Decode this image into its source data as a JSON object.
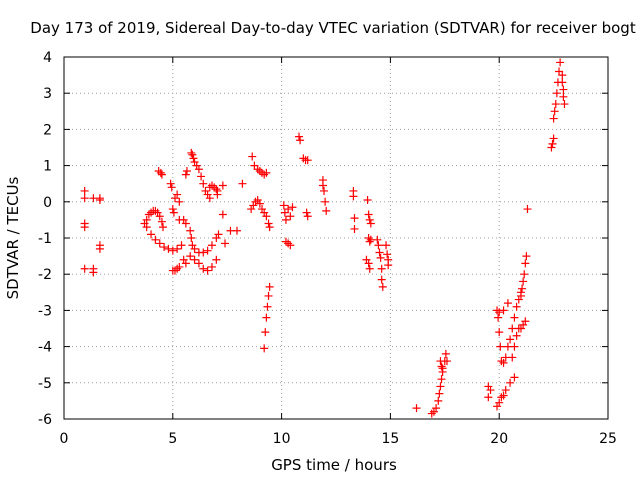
{
  "chart_data": {
    "type": "scatter",
    "title": "Day 173 of 2019, Sidereal Day-to-day VTEC variation (SDTVAR) for receiver bogt",
    "xlabel": "GPS time / hours",
    "ylabel": "SDTVAR / TECUs",
    "xlim": [
      0,
      25
    ],
    "ylim": [
      -6,
      4
    ],
    "xticks": [
      0,
      5,
      10,
      15,
      20,
      25
    ],
    "yticks": [
      -6,
      -5,
      -4,
      -3,
      -2,
      -1,
      0,
      1,
      2,
      3,
      4
    ],
    "grid": true,
    "marker": "+",
    "color": "#ff0000",
    "series": [
      {
        "name": "bogt",
        "points": [
          [
            0.95,
            0.3
          ],
          [
            0.95,
            0.1
          ],
          [
            0.95,
            -0.6
          ],
          [
            0.95,
            -0.7
          ],
          [
            0.95,
            -1.85
          ],
          [
            1.35,
            0.1
          ],
          [
            1.35,
            -1.85
          ],
          [
            1.35,
            -1.95
          ],
          [
            1.65,
            0.1
          ],
          [
            1.65,
            0.05
          ],
          [
            1.65,
            -1.2
          ],
          [
            1.65,
            -1.3
          ],
          [
            3.7,
            -0.6
          ],
          [
            3.8,
            -0.5
          ],
          [
            3.9,
            -0.35
          ],
          [
            4.0,
            -0.3
          ],
          [
            4.1,
            -0.25
          ],
          [
            4.2,
            -0.25
          ],
          [
            4.3,
            -0.3
          ],
          [
            4.4,
            -0.4
          ],
          [
            4.5,
            -0.55
          ],
          [
            4.55,
            -0.7
          ],
          [
            3.8,
            -0.7
          ],
          [
            4.0,
            -0.9
          ],
          [
            4.2,
            -1.05
          ],
          [
            4.4,
            -1.15
          ],
          [
            4.6,
            -1.25
          ],
          [
            4.8,
            -1.3
          ],
          [
            5.0,
            -1.35
          ],
          [
            5.2,
            -1.3
          ],
          [
            5.4,
            -1.2
          ],
          [
            4.35,
            0.85
          ],
          [
            4.45,
            0.8
          ],
          [
            4.5,
            0.75
          ],
          [
            4.9,
            0.5
          ],
          [
            4.95,
            0.4
          ],
          [
            5.0,
            -1.9
          ],
          [
            5.1,
            -1.9
          ],
          [
            5.2,
            -1.85
          ],
          [
            5.3,
            -1.8
          ],
          [
            5.0,
            -0.2
          ],
          [
            5.05,
            -0.3
          ],
          [
            5.1,
            0.1
          ],
          [
            5.2,
            0.2
          ],
          [
            5.3,
            0.0
          ],
          [
            5.3,
            -0.5
          ],
          [
            5.5,
            -0.5
          ],
          [
            5.6,
            -0.6
          ],
          [
            5.5,
            -1.6
          ],
          [
            5.6,
            -1.7
          ],
          [
            5.6,
            0.75
          ],
          [
            5.65,
            0.85
          ],
          [
            5.85,
            1.35
          ],
          [
            5.9,
            1.3
          ],
          [
            5.95,
            1.2
          ],
          [
            6.0,
            1.1
          ],
          [
            6.1,
            1.0
          ],
          [
            6.2,
            0.9
          ],
          [
            6.3,
            0.7
          ],
          [
            6.4,
            0.5
          ],
          [
            6.5,
            0.3
          ],
          [
            6.6,
            0.2
          ],
          [
            6.7,
            0.1
          ],
          [
            6.7,
            0.4
          ],
          [
            6.8,
            0.45
          ],
          [
            6.9,
            0.4
          ],
          [
            7.0,
            0.35
          ],
          [
            7.05,
            0.3
          ],
          [
            7.05,
            0.2
          ],
          [
            7.3,
            0.45
          ],
          [
            5.8,
            -0.8
          ],
          [
            5.85,
            -1.0
          ],
          [
            5.9,
            -1.2
          ],
          [
            6.0,
            -1.3
          ],
          [
            6.2,
            -1.4
          ],
          [
            6.4,
            -1.4
          ],
          [
            6.6,
            -1.35
          ],
          [
            6.8,
            -1.2
          ],
          [
            7.0,
            -1.0
          ],
          [
            7.1,
            -0.9
          ],
          [
            5.8,
            -1.5
          ],
          [
            6.0,
            -1.6
          ],
          [
            6.2,
            -1.7
          ],
          [
            6.4,
            -1.85
          ],
          [
            6.6,
            -1.9
          ],
          [
            6.8,
            -1.8
          ],
          [
            7.0,
            -1.6
          ],
          [
            7.3,
            -0.35
          ],
          [
            7.4,
            -1.15
          ],
          [
            7.65,
            -0.8
          ],
          [
            7.95,
            -0.8
          ],
          [
            8.2,
            0.5
          ],
          [
            8.65,
            1.25
          ],
          [
            8.75,
            1.0
          ],
          [
            8.9,
            0.9
          ],
          [
            9.0,
            0.85
          ],
          [
            9.1,
            0.8
          ],
          [
            9.2,
            0.75
          ],
          [
            9.3,
            0.8
          ],
          [
            8.6,
            -0.2
          ],
          [
            8.7,
            -0.1
          ],
          [
            8.8,
            0.0
          ],
          [
            8.9,
            0.05
          ],
          [
            9.0,
            -0.05
          ],
          [
            9.1,
            -0.2
          ],
          [
            9.2,
            -0.3
          ],
          [
            9.3,
            -0.4
          ],
          [
            9.4,
            -0.6
          ],
          [
            9.45,
            -0.7
          ],
          [
            9.2,
            -4.05
          ],
          [
            9.25,
            -3.6
          ],
          [
            9.3,
            -3.2
          ],
          [
            9.35,
            -2.9
          ],
          [
            9.4,
            -2.6
          ],
          [
            9.45,
            -2.35
          ],
          [
            10.1,
            -0.1
          ],
          [
            10.15,
            -0.3
          ],
          [
            10.2,
            -0.5
          ],
          [
            10.3,
            -0.2
          ],
          [
            10.4,
            -0.4
          ],
          [
            10.5,
            -0.15
          ],
          [
            10.2,
            -1.1
          ],
          [
            10.3,
            -1.15
          ],
          [
            10.4,
            -1.2
          ],
          [
            10.8,
            1.8
          ],
          [
            10.85,
            1.7
          ],
          [
            11.0,
            1.2
          ],
          [
            11.1,
            1.15
          ],
          [
            11.2,
            1.15
          ],
          [
            11.15,
            -0.3
          ],
          [
            11.2,
            -0.4
          ],
          [
            11.9,
            0.6
          ],
          [
            11.9,
            0.45
          ],
          [
            11.95,
            0.3
          ],
          [
            12.0,
            0.0
          ],
          [
            12.05,
            -0.25
          ],
          [
            13.3,
            0.3
          ],
          [
            13.3,
            0.15
          ],
          [
            13.35,
            -0.45
          ],
          [
            13.35,
            -0.75
          ],
          [
            13.95,
            0.05
          ],
          [
            14.0,
            -0.35
          ],
          [
            14.05,
            -0.5
          ],
          [
            14.1,
            -0.6
          ],
          [
            14.0,
            -1.0
          ],
          [
            14.05,
            -1.1
          ],
          [
            14.1,
            -1.05
          ],
          [
            13.9,
            -1.6
          ],
          [
            14.0,
            -1.7
          ],
          [
            14.05,
            -1.85
          ],
          [
            14.4,
            -1.05
          ],
          [
            14.45,
            -1.2
          ],
          [
            14.5,
            -1.4
          ],
          [
            14.55,
            -1.55
          ],
          [
            14.6,
            -1.85
          ],
          [
            14.6,
            -2.15
          ],
          [
            14.65,
            -2.35
          ],
          [
            14.8,
            -1.2
          ],
          [
            14.85,
            -1.45
          ],
          [
            14.9,
            -1.6
          ],
          [
            14.9,
            -1.75
          ],
          [
            16.2,
            -5.7
          ],
          [
            16.9,
            -5.85
          ],
          [
            17.0,
            -5.8
          ],
          [
            17.1,
            -5.7
          ],
          [
            17.2,
            -5.5
          ],
          [
            17.25,
            -5.3
          ],
          [
            17.3,
            -5.1
          ],
          [
            17.35,
            -4.9
          ],
          [
            17.4,
            -4.7
          ],
          [
            17.3,
            -4.4
          ],
          [
            17.35,
            -4.55
          ],
          [
            17.4,
            -4.6
          ],
          [
            17.5,
            -4.4
          ],
          [
            17.55,
            -4.2
          ],
          [
            17.6,
            -4.4
          ],
          [
            19.5,
            -5.1
          ],
          [
            19.5,
            -5.4
          ],
          [
            19.6,
            -5.2
          ],
          [
            19.9,
            -3.0
          ],
          [
            19.95,
            -3.2
          ],
          [
            20.0,
            -3.6
          ],
          [
            20.05,
            -4.0
          ],
          [
            20.1,
            -4.4
          ],
          [
            20.2,
            -4.45
          ],
          [
            20.3,
            -4.3
          ],
          [
            20.4,
            -4.0
          ],
          [
            20.5,
            -3.8
          ],
          [
            20.6,
            -3.5
          ],
          [
            20.7,
            -3.2
          ],
          [
            20.8,
            -2.9
          ],
          [
            20.9,
            -2.7
          ],
          [
            21.0,
            -2.5
          ],
          [
            20.0,
            -3.05
          ],
          [
            20.2,
            -3.0
          ],
          [
            20.4,
            -2.8
          ],
          [
            19.9,
            -5.65
          ],
          [
            20.0,
            -5.55
          ],
          [
            20.1,
            -5.4
          ],
          [
            20.2,
            -5.35
          ],
          [
            20.3,
            -5.2
          ],
          [
            20.5,
            -5.0
          ],
          [
            20.7,
            -4.85
          ],
          [
            20.6,
            -4.3
          ],
          [
            20.7,
            -4.0
          ],
          [
            20.8,
            -3.7
          ],
          [
            20.9,
            -3.5
          ],
          [
            21.0,
            -3.5
          ],
          [
            21.1,
            -3.4
          ],
          [
            21.2,
            -3.3
          ],
          [
            21.0,
            -2.6
          ],
          [
            21.05,
            -2.4
          ],
          [
            21.1,
            -2.2
          ],
          [
            21.15,
            -2.0
          ],
          [
            21.2,
            -1.7
          ],
          [
            21.25,
            -1.5
          ],
          [
            21.3,
            -0.2
          ],
          [
            22.4,
            1.5
          ],
          [
            22.45,
            1.6
          ],
          [
            22.5,
            1.75
          ],
          [
            22.5,
            2.3
          ],
          [
            22.55,
            2.5
          ],
          [
            22.6,
            2.7
          ],
          [
            22.65,
            3.0
          ],
          [
            22.7,
            3.3
          ],
          [
            22.75,
            3.6
          ],
          [
            22.8,
            3.85
          ],
          [
            22.9,
            3.5
          ],
          [
            22.9,
            3.3
          ],
          [
            22.95,
            3.1
          ],
          [
            22.95,
            2.9
          ],
          [
            23.0,
            2.7
          ]
        ]
      }
    ]
  }
}
